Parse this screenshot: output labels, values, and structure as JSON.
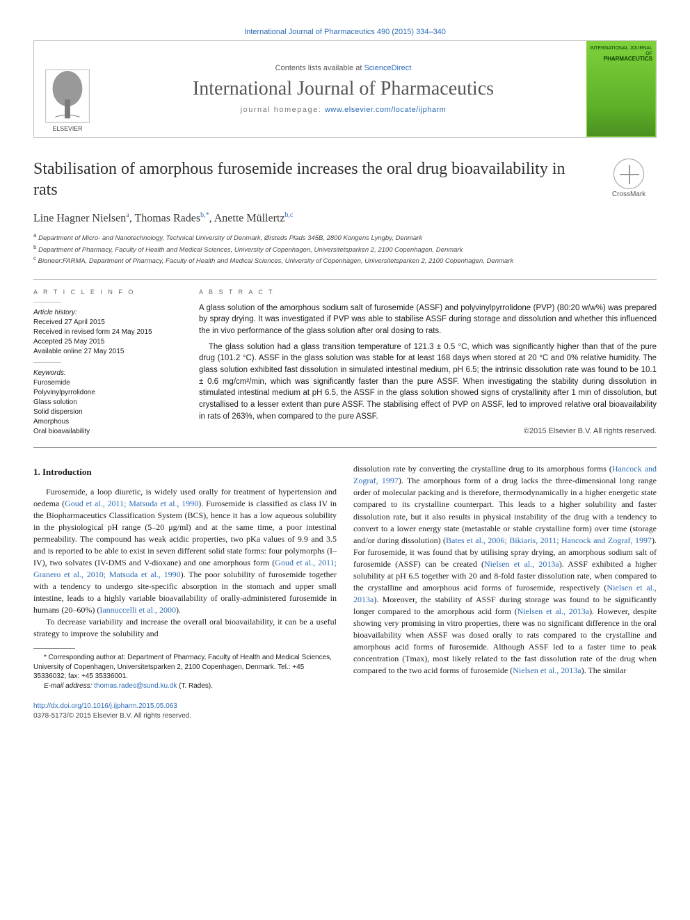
{
  "topRef": "International Journal of Pharmaceutics 490 (2015) 334–340",
  "header": {
    "contentsPrefix": "Contents lists available at ",
    "contentsLink": "ScienceDirect",
    "journalTitle": "International Journal of Pharmaceutics",
    "homepagePrefix": "journal homepage: ",
    "homepageLink": "www.elsevier.com/locate/ijpharm",
    "publisherLabel": "ELSEVIER",
    "coverTopLabel": "INTERNATIONAL JOURNAL OF",
    "coverTitle": "PHARMACEUTICS"
  },
  "crossmarkLabel": "CrossMark",
  "article": {
    "title": "Stabilisation of amorphous furosemide increases the oral drug bioavailability in rats",
    "authorsHtml": "Line Hagner Nielsen<sup>a</sup>, Thomas Rades<sup>b,*</sup>, Anette Müllertz<sup>b,c</sup>",
    "affiliations": [
      "a Department of Micro- and Nanotechnology, Technical University of Denmark, Ørsteds Plads 345B, 2800 Kongens Lyngby, Denmark",
      "b Department of Pharmacy, Faculty of Health and Medical Sciences, University of Copenhagen, Universitetsparken 2, 2100 Copenhagen, Denmark",
      "c Bioneer:FARMA, Department of Pharmacy, Faculty of Health and Medical Sciences, University of Copenhagen, Universitetsparken 2, 2100 Copenhagen, Denmark"
    ]
  },
  "info": {
    "articleInfoHd": "A R T I C L E   I N F O",
    "historyLabel": "Article history:",
    "history": [
      "Received 27 April 2015",
      "Received in revised form 24 May 2015",
      "Accepted 25 May 2015",
      "Available online 27 May 2015"
    ],
    "keywordsLabel": "Keywords:",
    "keywords": [
      "Furosemide",
      "Polyvinylpyrrolidone",
      "Glass solution",
      "Solid dispersion",
      "Amorphous",
      "Oral bioavailability"
    ],
    "abstractHd": "A B S T R A C T",
    "abstractParas": [
      "A glass solution of the amorphous sodium salt of furosemide (ASSF) and polyvinylpyrrolidone (PVP) (80:20 w/w%) was prepared by spray drying. It was investigated if PVP was able to stabilise ASSF during storage and dissolution and whether this influenced the in vivo performance of the glass solution after oral dosing to rats.",
      "The glass solution had a glass transition temperature of 121.3 ± 0.5 °C, which was significantly higher than that of the pure drug (101.2 °C). ASSF in the glass solution was stable for at least 168 days when stored at 20 °C and 0% relative humidity. The glass solution exhibited fast dissolution in simulated intestinal medium, pH 6.5; the intrinsic dissolution rate was found to be 10.1 ± 0.6 mg/cm²/min, which was significantly faster than the pure ASSF. When investigating the stability during dissolution in stimulated intestinal medium at pH 6.5, the ASSF in the glass solution showed signs of crystallinity after 1 min of dissolution, but crystallised to a lesser extent than pure ASSF. The stabilising effect of PVP on ASSF, led to improved relative oral bioavailability in rats of 263%, when compared to the pure ASSF."
    ],
    "copyright": "©2015 Elsevier B.V. All rights reserved."
  },
  "body": {
    "section1Hd": "1. Introduction",
    "p1_a": "Furosemide, a loop diuretic, is widely used orally for treatment of hypertension and oedema (",
    "p1_link1": "Goud et al., 2011; Matsuda et al., 1990",
    "p1_b": "). Furosemide is classified as class IV in the Biopharmaceutics Classification System (BCS), hence it has a low aqueous solubility in the physiological pH range (5–20 μg/ml) and at the same time, a poor intestinal permeability. The compound has weak acidic properties, two pKa values of 9.9 and 3.5 and is reported to be able to exist in seven different solid state forms: four polymorphs (I–IV), two solvates (IV-DMS and V-dioxane) and one amorphous form (",
    "p1_link2": "Goud et al., 2011; Granero et al., 2010; Matsuda et al., 1990",
    "p1_c": "). The poor solubility of furosemide together with a tendency to undergo site-specific absorption in the stomach and upper small intestine, leads to a highly variable bioavailability of orally-administered furosemide in humans (20–60%) (",
    "p1_link3": "Iannuccelli et al., 2000",
    "p1_d": ").",
    "p2": "To decrease variability and increase the overall oral bioavailability, it can be a useful strategy to improve the solubility and",
    "p3_a": "dissolution rate by converting the crystalline drug to its amorphous forms (",
    "p3_link1": "Hancock and Zograf, 1997",
    "p3_b": "). The amorphous form of a drug lacks the three-dimensional long range order of molecular packing and is therefore, thermodynamically in a higher energetic state compared to its crystalline counterpart. This leads to a higher solubility and faster dissolution rate, but it also results in physical instability of the drug with a tendency to convert to a lower energy state (metastable or stable crystalline form) over time (storage and/or during dissolution) (",
    "p3_link2": "Bates et al., 2006; Bikiaris, 2011; Hancock and Zograf, 1997",
    "p3_c": "). For furosemide, it was found that by utilising spray drying, an amorphous sodium salt of furosemide (ASSF) can be created (",
    "p3_link3": "Nielsen et al., 2013a",
    "p3_d": "). ASSF exhibited a higher solubility at pH 6.5 together with 20 and 8-fold faster dissolution rate, when compared to the crystalline and amorphous acid forms of furosemide, respectively (",
    "p3_link4": "Nielsen et al., 2013a",
    "p3_e": "). Moreover, the stability of ASSF during storage was found to be significantly longer compared to the amorphous acid form (",
    "p3_link5": "Nielsen et al., 2013a",
    "p3_f": "). However, despite showing very promising in vitro properties, there was no significant difference in the oral bioavailability when ASSF was dosed orally to rats compared to the crystalline and amorphous acid forms of furosemide. Although ASSF led to a faster time to peak concentration (Tmax), most likely related to the fast dissolution rate of the drug when compared to the two acid forms of furosemide (",
    "p3_link6": "Nielsen et al., 2013a",
    "p3_g": "). The similar"
  },
  "footnote": {
    "corresponding": "* Corresponding author at: Department of Pharmacy, Faculty of Health and Medical Sciences, University of Copenhagen, Universitetsparken 2, 2100 Copenhagen, Denmark. Tel.: +45 35336032; fax: +45 35336001.",
    "emailLabel": "E-mail address: ",
    "email": "thomas.rades@sund.ku.dk",
    "emailSuffix": " (T. Rades)."
  },
  "doi": {
    "link": "http://dx.doi.org/10.1016/j.ijpharm.2015.05.063",
    "copyright": "0378-5173/© 2015 Elsevier B.V. All rights reserved."
  }
}
